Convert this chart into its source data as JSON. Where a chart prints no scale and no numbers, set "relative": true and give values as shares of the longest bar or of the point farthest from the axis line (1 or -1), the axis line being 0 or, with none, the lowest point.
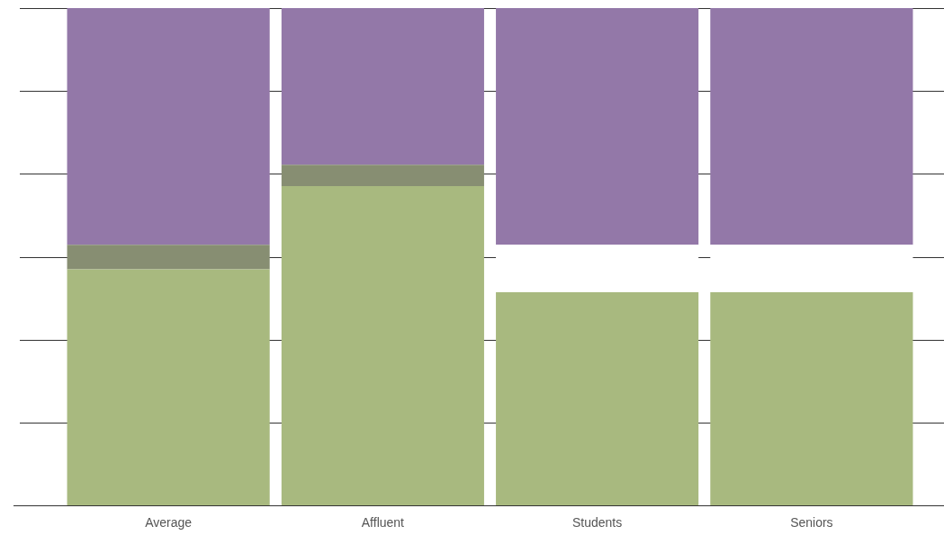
{
  "chart_data": {
    "type": "bar",
    "relative": true,
    "stacked": true,
    "grid": "y",
    "categories": [
      "Average",
      "Affluent",
      "Students",
      "Seniors"
    ],
    "series": [
      {
        "color": "#a8b97f",
        "values": [
          0.475,
          0.642,
          0.429,
          0.429
        ]
      },
      {
        "color": "#878e72",
        "values": [
          0.049,
          0.043,
          null,
          null
        ]
      },
      {
        "color": "#ffffff",
        "values": [
          null,
          null,
          0.095,
          0.095
        ]
      },
      {
        "color": "#9378a8",
        "values": [
          0.476,
          0.315,
          0.476,
          0.476
        ]
      }
    ]
  }
}
